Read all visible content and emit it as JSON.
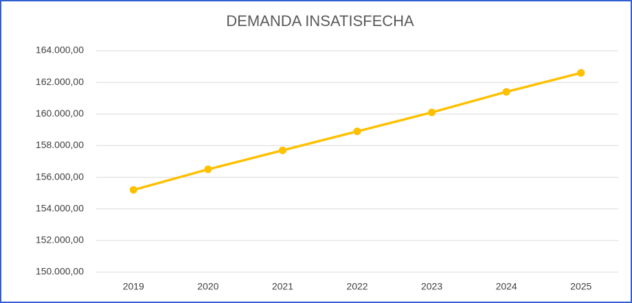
{
  "chart_data": {
    "type": "line",
    "title": "DEMANDA INSATISFECHA",
    "categories": [
      "2019",
      "2020",
      "2021",
      "2022",
      "2023",
      "2024",
      "2025"
    ],
    "series": [
      {
        "name": "DEMANDA INSATISFECHA",
        "color": "#ffc000",
        "values": [
          155200,
          156500,
          157700,
          158900,
          160100,
          161400,
          162600
        ]
      }
    ],
    "ylim": [
      150000,
      164000
    ],
    "yticks": [
      {
        "value": 150000,
        "label": "150.000,00"
      },
      {
        "value": 152000,
        "label": "152.000,00"
      },
      {
        "value": 154000,
        "label": "154.000,00"
      },
      {
        "value": 156000,
        "label": "156.000,00"
      },
      {
        "value": 158000,
        "label": "158.000,00"
      },
      {
        "value": 160000,
        "label": "160.000,00"
      },
      {
        "value": 162000,
        "label": "162.000,00"
      },
      {
        "value": 164000,
        "label": "164.000,00"
      }
    ],
    "grid": true
  }
}
